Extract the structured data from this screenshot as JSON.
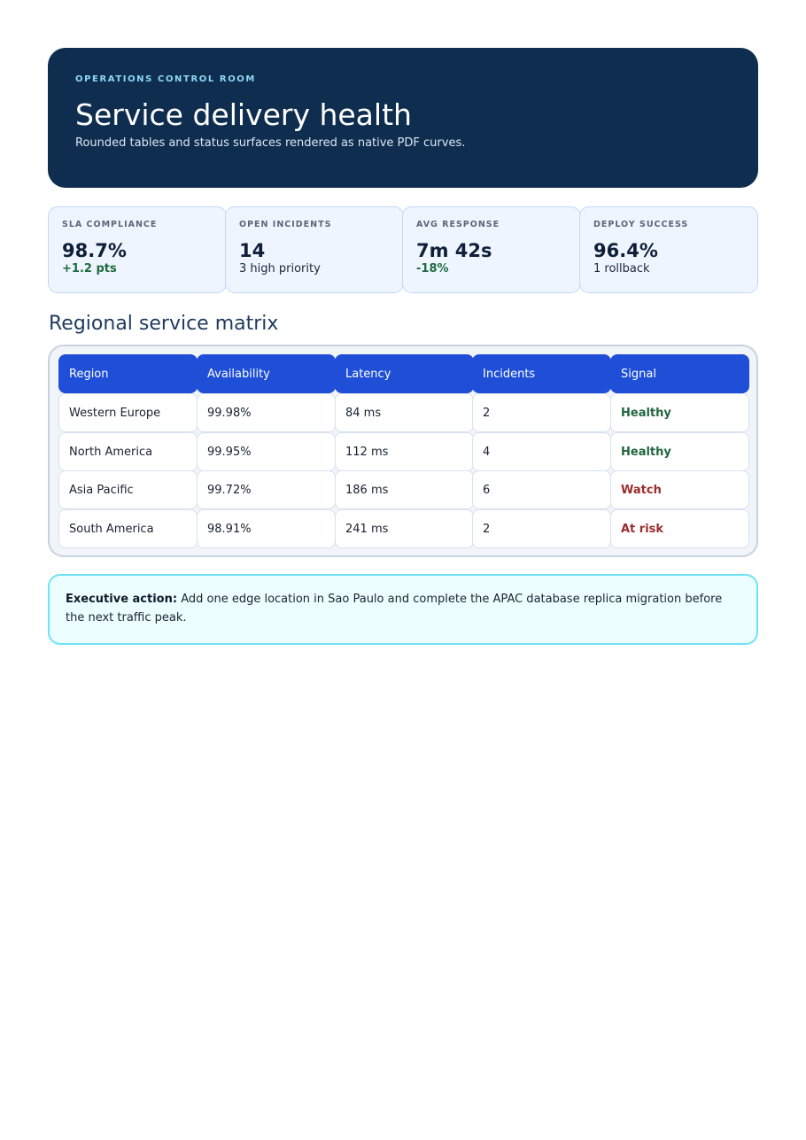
{
  "hero": {
    "eyebrow": "OPERATIONS CONTROL ROOM",
    "title": "Service delivery health",
    "subtitle": "Rounded tables and status surfaces rendered as native PDF curves."
  },
  "kpis": [
    {
      "label": "SLA COMPLIANCE",
      "value": "98.7%",
      "note": "+1.2 pts",
      "tone": "positive"
    },
    {
      "label": "OPEN INCIDENTS",
      "value": "14",
      "note": "3 high priority",
      "tone": "neutral"
    },
    {
      "label": "AVG RESPONSE",
      "value": "7m 42s",
      "note": "-18%",
      "tone": "positive"
    },
    {
      "label": "DEPLOY SUCCESS",
      "value": "96.4%",
      "note": "1 rollback",
      "tone": "neutral"
    }
  ],
  "matrix": {
    "title": "Regional service matrix",
    "columns": [
      "Region",
      "Availability",
      "Latency",
      "Incidents",
      "Signal"
    ],
    "rows": [
      {
        "region": "Western Europe",
        "availability": "99.98%",
        "latency": "84 ms",
        "incidents": "2",
        "signal": "Healthy"
      },
      {
        "region": "North America",
        "availability": "99.95%",
        "latency": "112 ms",
        "incidents": "4",
        "signal": "Healthy"
      },
      {
        "region": "Asia Pacific",
        "availability": "99.72%",
        "latency": "186 ms",
        "incidents": "6",
        "signal": "Watch"
      },
      {
        "region": "South America",
        "availability": "98.91%",
        "latency": "241 ms",
        "incidents": "2",
        "signal": "At risk"
      }
    ],
    "signal_colors": {
      "Healthy": "#22663f",
      "Watch": "#9a2c2c",
      "At risk": "#9a2c2c"
    }
  },
  "callout": {
    "lead": "Executive action:",
    "text": " Add one edge location in Sao Paulo and complete the APAC database replica migration before the next traffic peak."
  },
  "colors": {
    "hero_bg": "#0f2e4f",
    "table_header": "#1f4fd6",
    "positive": "#1f6b3f",
    "callout_border": "#6fe3f5"
  }
}
